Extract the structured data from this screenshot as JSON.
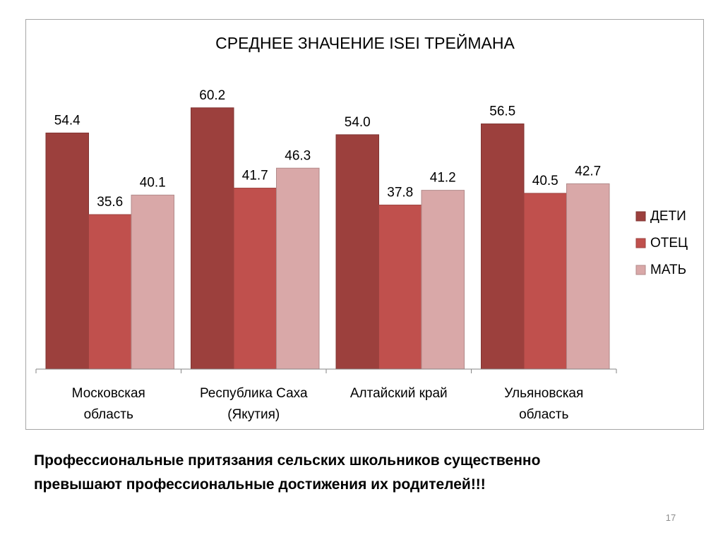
{
  "chart_data": {
    "type": "bar",
    "title": "СРЕДНЕЕ ЗНАЧЕНИЕ ISEI ТРЕЙМАНА",
    "categories": [
      [
        "Московская",
        "область"
      ],
      [
        "Республика Саха",
        "(Якутия)"
      ],
      [
        "Алтайский край"
      ],
      [
        "Ульяновская",
        "область"
      ]
    ],
    "series": [
      {
        "name": "ДЕТИ",
        "color": "#9c403d",
        "values": [
          54.4,
          60.2,
          54.0,
          56.5
        ]
      },
      {
        "name": "ОТЕЦ",
        "color": "#c0504d",
        "values": [
          35.6,
          41.7,
          37.8,
          40.5
        ]
      },
      {
        "name": "МАТЬ",
        "color": "#d9a8a8",
        "values": [
          40.1,
          46.3,
          41.2,
          42.7
        ]
      }
    ],
    "value_format": "0.0",
    "ylim": [
      0,
      70
    ],
    "grid": false,
    "legend_position": "right"
  },
  "caption": {
    "lines": [
      "Профессиональные притязания сельских школьников существенно",
      "превышают профессиональные достижения их родителей!!!"
    ]
  },
  "slide_number": "17"
}
